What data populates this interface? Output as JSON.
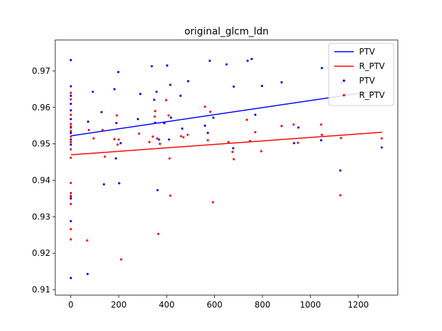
{
  "chart_data": {
    "type": "scatter",
    "title": "original_glcm_ldn",
    "xlabel": "",
    "ylabel": "",
    "xlim": [
      -65,
      1365
    ],
    "ylim": [
      0.9085,
      0.9785
    ],
    "xticks": [
      0,
      200,
      400,
      600,
      800,
      1000,
      1200
    ],
    "yticks": [
      0.91,
      0.92,
      0.93,
      0.94,
      0.95,
      0.96,
      0.97
    ],
    "ytick_labels": [
      "0.91",
      "0.92",
      "0.93",
      "0.94",
      "0.95",
      "0.96",
      "0.97"
    ],
    "grid": false,
    "legend_position": "top-right",
    "legend": [
      {
        "label": "PTV",
        "kind": "line",
        "color": "#0000ff"
      },
      {
        "label": "R_PTV",
        "kind": "line",
        "color": "#ff0000"
      },
      {
        "label": "PTV",
        "kind": "marker",
        "color": "#0000ff"
      },
      {
        "label": "R_PTV",
        "kind": "marker",
        "color": "#ff0000"
      }
    ],
    "series": [
      {
        "name": "PTV",
        "color": "#0000ff",
        "fit": {
          "x": [
            0,
            1300
          ],
          "y": [
            0.9522,
            0.9648
          ]
        },
        "points": [
          [
            0,
            0.973
          ],
          [
            0,
            0.9658
          ],
          [
            0,
            0.9632
          ],
          [
            0,
            0.961
          ],
          [
            0,
            0.9592
          ],
          [
            0,
            0.9568
          ],
          [
            0,
            0.9545
          ],
          [
            0,
            0.953
          ],
          [
            0,
            0.9512
          ],
          [
            0,
            0.9498
          ],
          [
            0,
            0.9357
          ],
          [
            0,
            0.935
          ],
          [
            0,
            0.9288
          ],
          [
            0,
            0.9132
          ],
          [
            70,
            0.9143
          ],
          [
            72,
            0.9561
          ],
          [
            92,
            0.9643
          ],
          [
            128,
            0.9587
          ],
          [
            138,
            0.9389
          ],
          [
            182,
            0.965
          ],
          [
            188,
            0.946
          ],
          [
            190,
            0.9557
          ],
          [
            198,
            0.9697
          ],
          [
            202,
            0.9392
          ],
          [
            208,
            0.9502
          ],
          [
            280,
            0.9568
          ],
          [
            290,
            0.9637
          ],
          [
            338,
            0.9713
          ],
          [
            348,
            0.9621
          ],
          [
            352,
            0.9558
          ],
          [
            358,
            0.9643
          ],
          [
            362,
            0.9373
          ],
          [
            368,
            0.9512
          ],
          [
            390,
            0.9557
          ],
          [
            402,
            0.9715
          ],
          [
            410,
            0.9512
          ],
          [
            415,
            0.9662
          ],
          [
            418,
            0.9572
          ],
          [
            458,
            0.9632
          ],
          [
            465,
            0.9542
          ],
          [
            490,
            0.9672
          ],
          [
            560,
            0.955
          ],
          [
            572,
            0.953
          ],
          [
            580,
            0.9728
          ],
          [
            595,
            0.9572
          ],
          [
            650,
            0.9718
          ],
          [
            678,
            0.9488
          ],
          [
            680,
            0.9657
          ],
          [
            738,
            0.9728
          ],
          [
            755,
            0.9733
          ],
          [
            770,
            0.958
          ],
          [
            798,
            0.9659
          ],
          [
            880,
            0.9669
          ],
          [
            932,
            0.9502
          ],
          [
            950,
            0.9545
          ],
          [
            1048,
            0.9708
          ],
          [
            1045,
            0.951
          ],
          [
            1125,
            0.9427
          ],
          [
            1130,
            0.9667
          ],
          [
            1298,
            0.949
          ]
        ]
      },
      {
        "name": "R_PTV",
        "color": "#ff0000",
        "fit": {
          "x": [
            0,
            1300
          ],
          "y": [
            0.947,
            0.9532
          ]
        },
        "points": [
          [
            0,
            0.964
          ],
          [
            0,
            0.9622
          ],
          [
            0,
            0.958
          ],
          [
            0,
            0.9555
          ],
          [
            0,
            0.9548
          ],
          [
            0,
            0.9535
          ],
          [
            0,
            0.952
          ],
          [
            0,
            0.9505
          ],
          [
            0,
            0.9485
          ],
          [
            0,
            0.9462
          ],
          [
            0,
            0.9393
          ],
          [
            0,
            0.9365
          ],
          [
            0,
            0.9355
          ],
          [
            0,
            0.9335
          ],
          [
            0,
            0.9266
          ],
          [
            0,
            0.9238
          ],
          [
            68,
            0.9235
          ],
          [
            75,
            0.9538
          ],
          [
            95,
            0.9515
          ],
          [
            132,
            0.9538
          ],
          [
            142,
            0.9465
          ],
          [
            182,
            0.9513
          ],
          [
            192,
            0.9578
          ],
          [
            195,
            0.9498
          ],
          [
            200,
            0.9512
          ],
          [
            210,
            0.9183
          ],
          [
            285,
            0.9528
          ],
          [
            328,
            0.9505
          ],
          [
            342,
            0.952
          ],
          [
            350,
            0.9575
          ],
          [
            352,
            0.959
          ],
          [
            360,
            0.9515
          ],
          [
            365,
            0.9253
          ],
          [
            372,
            0.95
          ],
          [
            398,
            0.962
          ],
          [
            408,
            0.9578
          ],
          [
            412,
            0.946
          ],
          [
            415,
            0.9358
          ],
          [
            460,
            0.9521
          ],
          [
            470,
            0.9518
          ],
          [
            488,
            0.9525
          ],
          [
            560,
            0.9602
          ],
          [
            572,
            0.951
          ],
          [
            582,
            0.9588
          ],
          [
            593,
            0.934
          ],
          [
            658,
            0.9505
          ],
          [
            675,
            0.9478
          ],
          [
            680,
            0.9458
          ],
          [
            735,
            0.9566
          ],
          [
            748,
            0.9508
          ],
          [
            770,
            0.9532
          ],
          [
            795,
            0.948
          ],
          [
            880,
            0.9549
          ],
          [
            930,
            0.9553
          ],
          [
            948,
            0.9503
          ],
          [
            1045,
            0.9553
          ],
          [
            1048,
            0.9525
          ],
          [
            1125,
            0.9359
          ],
          [
            1128,
            0.9516
          ],
          [
            1298,
            0.9515
          ]
        ]
      }
    ]
  }
}
